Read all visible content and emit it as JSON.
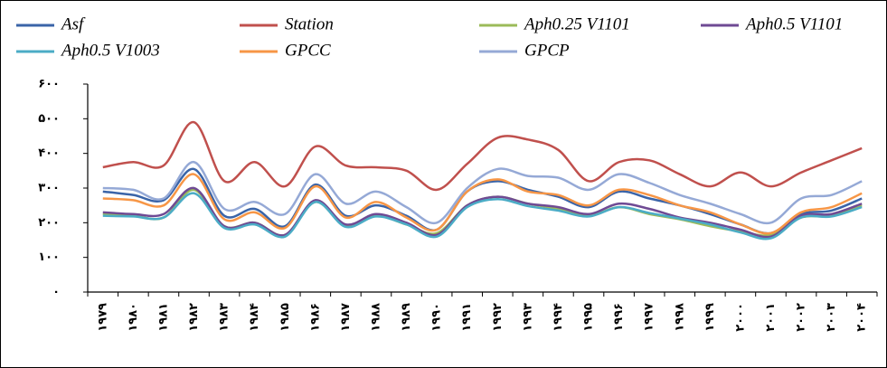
{
  "chart_data": {
    "type": "line",
    "categories": [
      "۱۹۷۹",
      "۱۹۸۰",
      "۱۹۸۱",
      "۱۹۸۲",
      "۱۹۸۳",
      "۱۹۸۴",
      "۱۹۸۵",
      "۱۹۸۶",
      "۱۹۸۷",
      "۱۹۸۸",
      "۱۹۸۹",
      "۱۹۹۰",
      "۱۹۹۱",
      "۱۹۹۲",
      "۱۹۹۳",
      "۱۹۹۴",
      "۱۹۹۵",
      "۱۹۹۶",
      "۱۹۹۷",
      "۱۹۹۸",
      "۱۹۹۹",
      "۲۰۰۰",
      "۲۰۰۱",
      "۲۰۰۲",
      "۲۰۰۳",
      "۲۰۰۴"
    ],
    "series": [
      {
        "name": "Asf",
        "color": "#3a64a8",
        "values": [
          290,
          280,
          265,
          355,
          220,
          240,
          190,
          310,
          220,
          250,
          220,
          180,
          290,
          320,
          295,
          275,
          245,
          290,
          270,
          250,
          225,
          195,
          170,
          225,
          235,
          270
        ]
      },
      {
        "name": "Station",
        "color": "#c0504d",
        "values": [
          360,
          375,
          365,
          490,
          320,
          375,
          305,
          420,
          365,
          360,
          350,
          295,
          370,
          445,
          440,
          410,
          320,
          375,
          380,
          340,
          305,
          345,
          305,
          345,
          380,
          415
        ]
      },
      {
        "name": "Aph0.25 V1101",
        "color": "#9bbb59",
        "values": [
          225,
          220,
          215,
          295,
          190,
          200,
          165,
          260,
          190,
          220,
          195,
          170,
          250,
          275,
          255,
          240,
          220,
          245,
          225,
          210,
          190,
          175,
          165,
          215,
          220,
          250
        ]
      },
      {
        "name": "Aph0.5 V1101",
        "color": "#6f4a94",
        "values": [
          230,
          225,
          225,
          300,
          190,
          200,
          165,
          265,
          195,
          225,
          200,
          165,
          250,
          275,
          255,
          245,
          225,
          255,
          240,
          215,
          200,
          180,
          160,
          220,
          225,
          255
        ]
      },
      {
        "name": "Aph0.5 V1003",
        "color": "#4bacc6",
        "values": [
          220,
          218,
          215,
          285,
          185,
          195,
          160,
          260,
          188,
          218,
          195,
          160,
          245,
          268,
          248,
          235,
          218,
          245,
          228,
          212,
          195,
          172,
          155,
          215,
          218,
          245
        ]
      },
      {
        "name": "GPCC",
        "color": "#f79646",
        "values": [
          270,
          265,
          250,
          340,
          210,
          230,
          185,
          305,
          215,
          260,
          215,
          180,
          290,
          325,
          290,
          280,
          250,
          295,
          280,
          250,
          230,
          195,
          170,
          230,
          245,
          285
        ]
      },
      {
        "name": "GPCP",
        "color": "#95a9d6",
        "values": [
          300,
          295,
          270,
          375,
          240,
          260,
          225,
          340,
          255,
          290,
          245,
          200,
          300,
          355,
          335,
          330,
          295,
          340,
          315,
          280,
          255,
          225,
          200,
          270,
          280,
          320
        ]
      }
    ],
    "ylim": [
      0,
      600
    ],
    "yticks": [
      {
        "value": 0,
        "label": "۰"
      },
      {
        "value": 100,
        "label": "۱۰۰"
      },
      {
        "value": 200,
        "label": "۲۰۰"
      },
      {
        "value": 300,
        "label": "۳۰۰"
      },
      {
        "value": 400,
        "label": "۴۰۰"
      },
      {
        "value": 500,
        "label": "۵۰۰"
      },
      {
        "value": 600,
        "label": "۶۰۰"
      }
    ]
  }
}
